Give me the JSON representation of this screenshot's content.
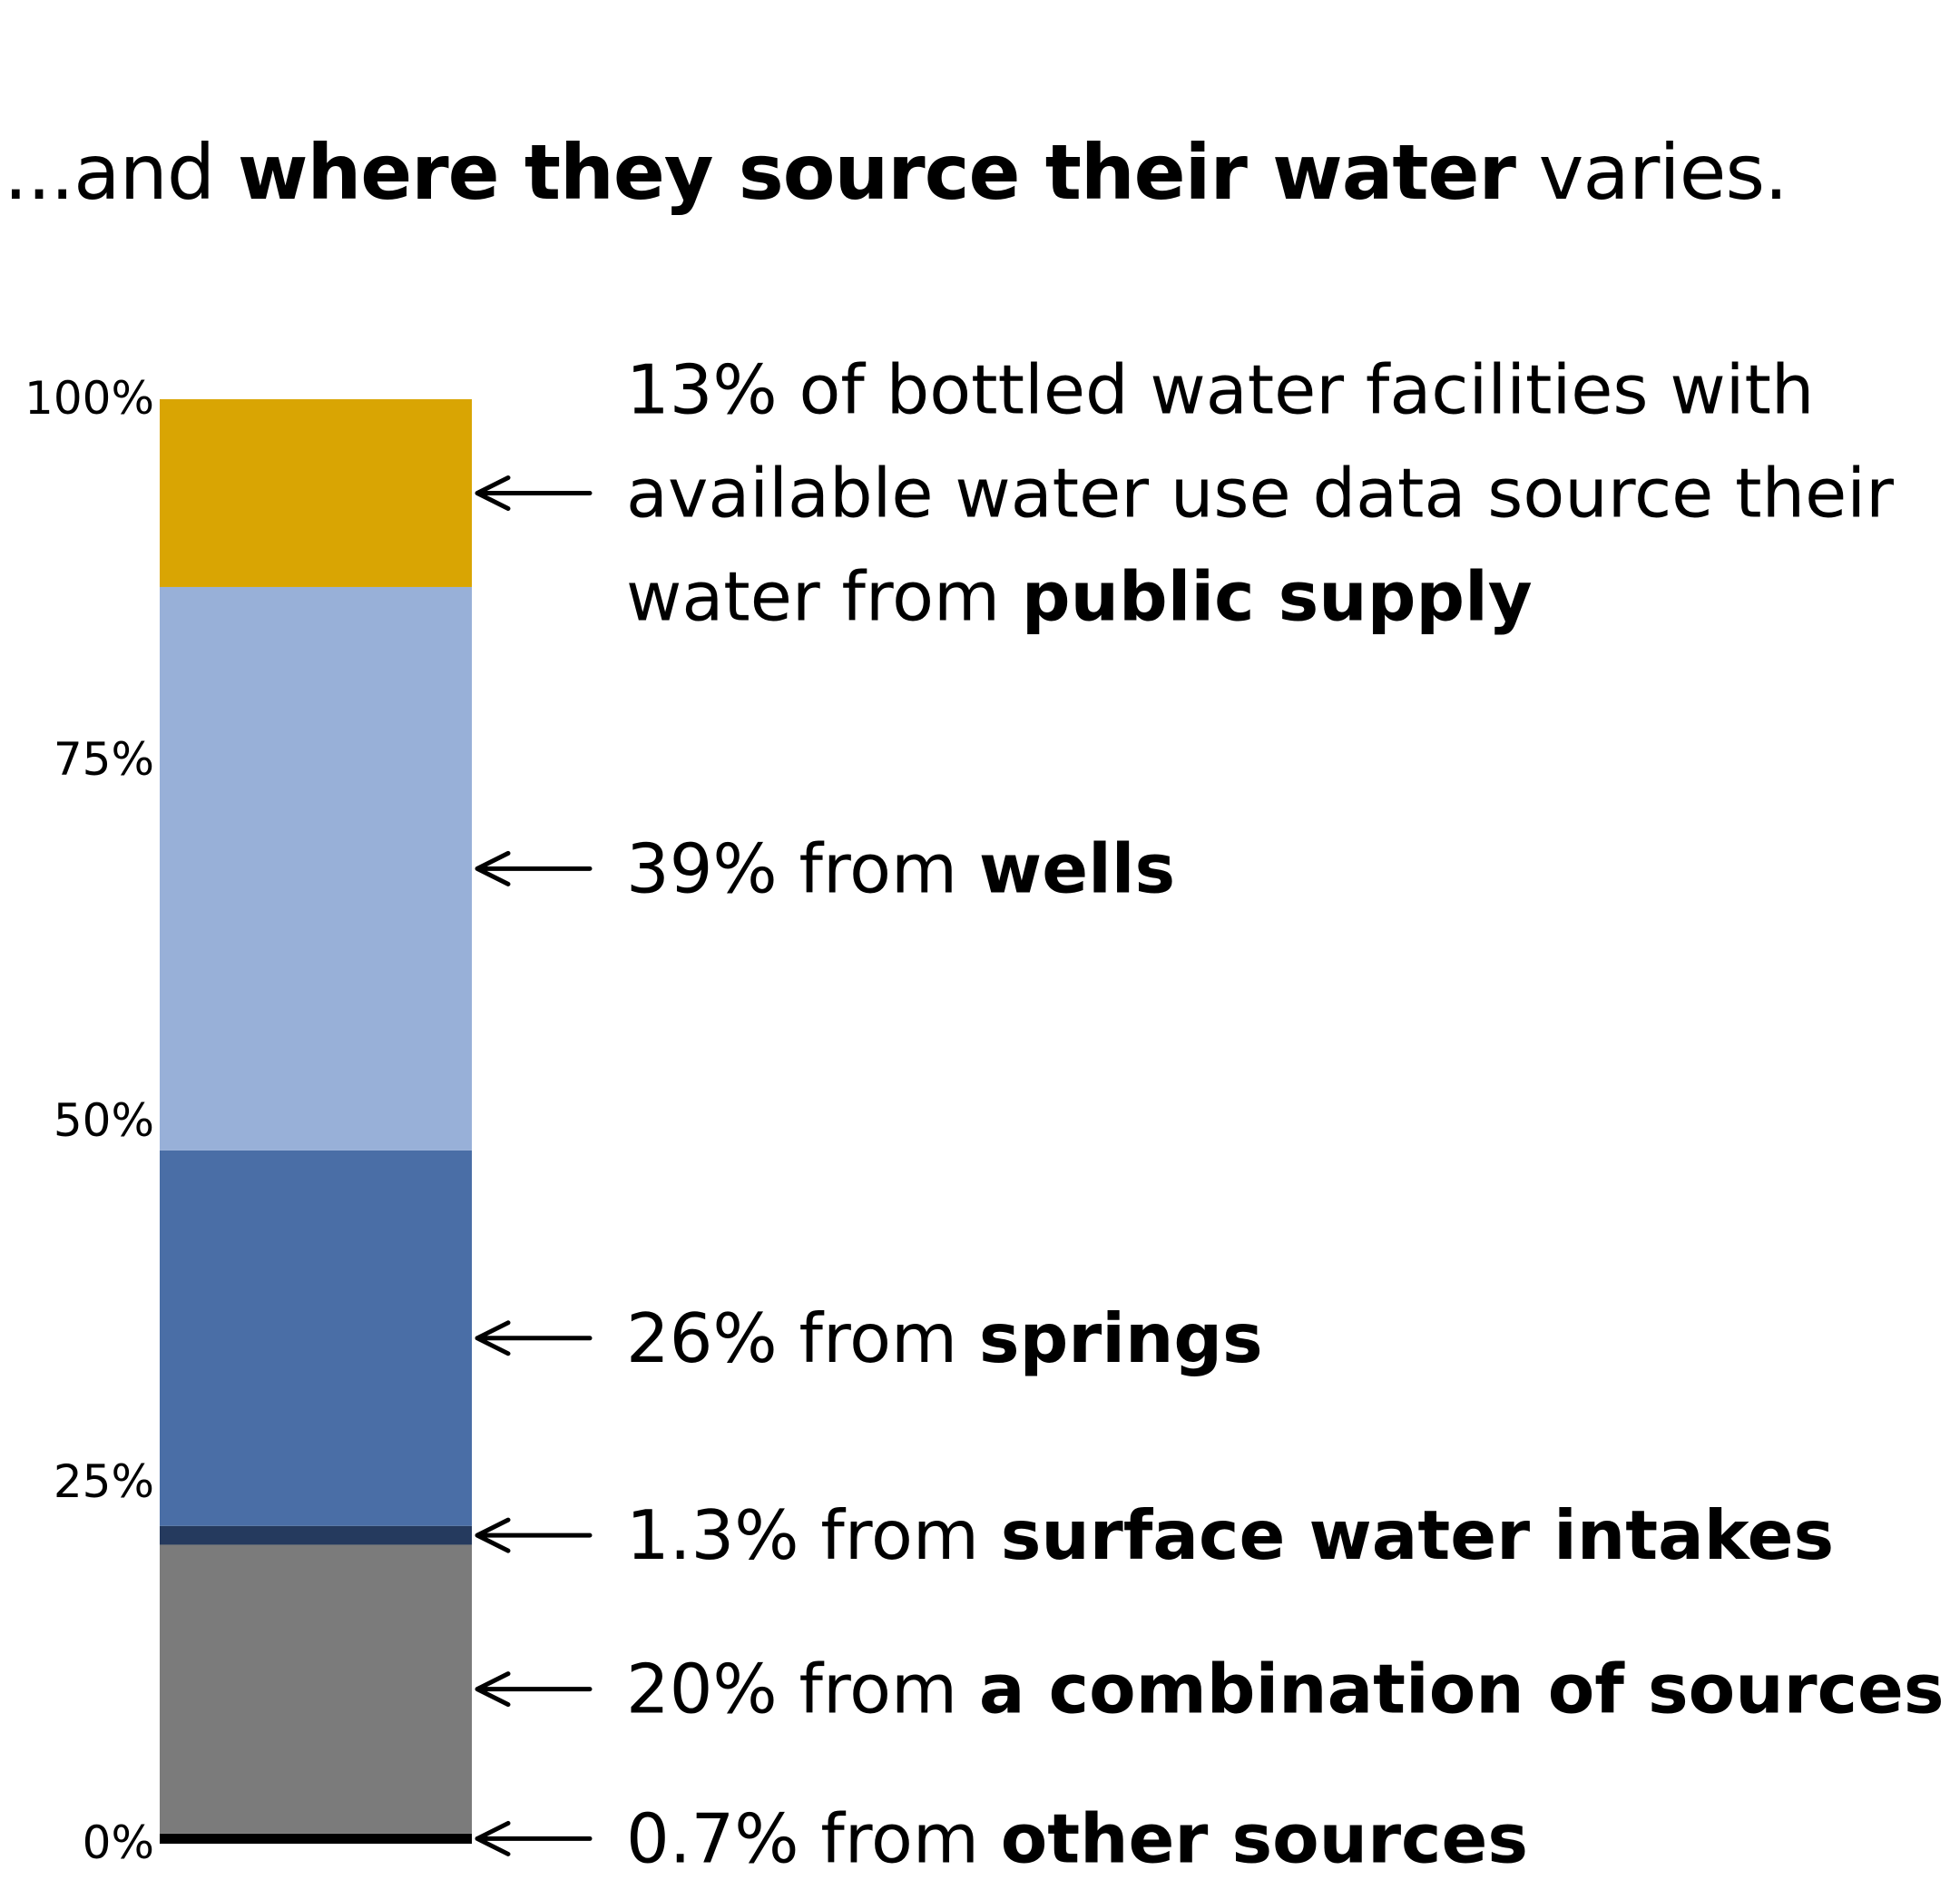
{
  "title": {
    "prefix": "...and ",
    "bold": "where they source their water",
    "suffix": " varies."
  },
  "chart_data": {
    "type": "bar",
    "orientation": "vertical-stacked-100",
    "ylim": [
      0,
      100
    ],
    "yticks": [
      0,
      25,
      50,
      75,
      100
    ],
    "ytick_labels": [
      "0%",
      "25%",
      "50%",
      "75%",
      "100%"
    ],
    "grid": false,
    "series": [
      {
        "name": "other sources",
        "value": 0.7,
        "color": "#000000",
        "annotation": {
          "pre": "0.7% from ",
          "bold": "other sources",
          "post": ""
        }
      },
      {
        "name": "a combination of sources",
        "value": 20,
        "color": "#7b7b7b",
        "annotation": {
          "pre": "20% from ",
          "bold": "a combination of sources",
          "post": ""
        }
      },
      {
        "name": "surface water intakes",
        "value": 1.3,
        "color": "#253a5e",
        "annotation": {
          "pre": "1.3% from ",
          "bold": "surface water intakes",
          "post": ""
        }
      },
      {
        "name": "springs",
        "value": 26,
        "color": "#4a6ea6",
        "annotation": {
          "pre": "26% from ",
          "bold": "springs",
          "post": ""
        }
      },
      {
        "name": "wells",
        "value": 39,
        "color": "#98b0d8",
        "annotation": {
          "pre": "39% from ",
          "bold": "wells",
          "post": ""
        }
      },
      {
        "name": "public supply",
        "value": 13,
        "color": "#d9a503",
        "annotation_lines": [
          {
            "pre": "13% of bottled water facilities with",
            "bold": "",
            "post": ""
          },
          {
            "pre": "available water use data source their",
            "bold": "",
            "post": ""
          },
          {
            "pre": "water from ",
            "bold": "public supply",
            "post": ""
          }
        ]
      }
    ]
  }
}
